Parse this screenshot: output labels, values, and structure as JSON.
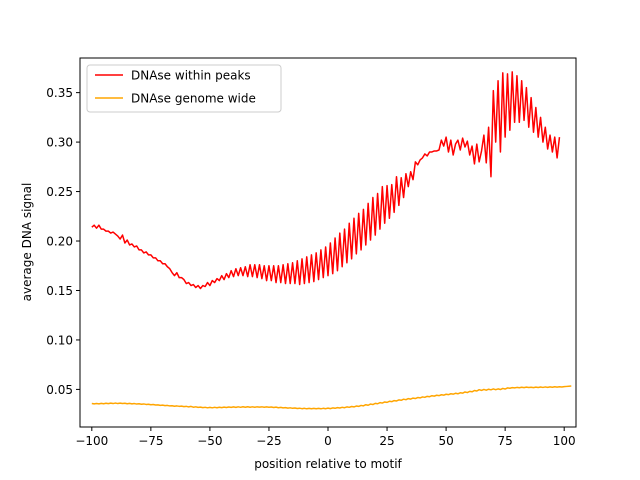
{
  "chart_data": {
    "type": "line",
    "title": "",
    "xlabel": "position relative to motif",
    "ylabel": "average DNA signal",
    "xlim": [
      -105,
      105
    ],
    "ylim": [
      0.012,
      0.385
    ],
    "xticks": [
      -100,
      -75,
      -50,
      -25,
      0,
      25,
      50,
      75,
      100
    ],
    "xtick_labels": [
      "−100",
      "−75",
      "−50",
      "−25",
      "0",
      "25",
      "50",
      "75",
      "100"
    ],
    "yticks": [
      0.05,
      0.1,
      0.15,
      0.2,
      0.25,
      0.3,
      0.35
    ],
    "ytick_labels": [
      "0.05",
      "0.10",
      "0.15",
      "0.20",
      "0.25",
      "0.30",
      "0.35"
    ],
    "grid": false,
    "legend_position": "upper-left",
    "x": {
      "start": -100,
      "end": 100,
      "step": 1
    },
    "series": [
      {
        "name": "DNAse within peaks",
        "color": "#ff0000",
        "values": [
          0.214,
          0.216,
          0.213,
          0.216,
          0.212,
          0.212,
          0.21,
          0.21,
          0.208,
          0.209,
          0.207,
          0.205,
          0.202,
          0.206,
          0.198,
          0.201,
          0.196,
          0.197,
          0.194,
          0.195,
          0.191,
          0.191,
          0.188,
          0.189,
          0.186,
          0.186,
          0.183,
          0.183,
          0.18,
          0.18,
          0.177,
          0.177,
          0.174,
          0.172,
          0.168,
          0.165,
          0.168,
          0.163,
          0.163,
          0.161,
          0.157,
          0.158,
          0.155,
          0.156,
          0.153,
          0.155,
          0.152,
          0.155,
          0.154,
          0.158,
          0.155,
          0.16,
          0.158,
          0.162,
          0.16,
          0.165,
          0.161,
          0.167,
          0.163,
          0.17,
          0.164,
          0.172,
          0.165,
          0.173,
          0.165,
          0.174,
          0.164,
          0.176,
          0.164,
          0.176,
          0.163,
          0.176,
          0.162,
          0.175,
          0.16,
          0.175,
          0.16,
          0.175,
          0.158,
          0.175,
          0.158,
          0.176,
          0.157,
          0.177,
          0.157,
          0.178,
          0.157,
          0.18,
          0.156,
          0.182,
          0.157,
          0.184,
          0.158,
          0.186,
          0.159,
          0.188,
          0.161,
          0.191,
          0.163,
          0.194,
          0.165,
          0.198,
          0.167,
          0.203,
          0.17,
          0.208,
          0.174,
          0.212,
          0.178,
          0.218,
          0.182,
          0.223,
          0.187,
          0.228,
          0.191,
          0.232,
          0.196,
          0.238,
          0.201,
          0.244,
          0.206,
          0.248,
          0.212,
          0.255,
          0.218,
          0.256,
          0.223,
          0.257,
          0.229,
          0.265,
          0.236,
          0.264,
          0.244,
          0.268,
          0.255,
          0.27,
          0.262,
          0.28,
          0.277,
          0.282,
          0.284,
          0.288,
          0.286,
          0.29,
          0.29,
          0.291,
          0.291,
          0.292,
          0.302,
          0.296,
          0.305,
          0.29,
          0.302,
          0.287,
          0.298,
          0.302,
          0.292,
          0.304,
          0.295,
          0.301,
          0.287,
          0.296,
          0.278,
          0.298,
          0.28,
          0.291,
          0.307,
          0.279,
          0.315,
          0.265,
          0.352,
          0.3,
          0.362,
          0.29,
          0.37,
          0.305,
          0.369,
          0.312,
          0.371,
          0.32,
          0.367,
          0.32,
          0.362,
          0.322,
          0.355,
          0.315,
          0.345,
          0.31,
          0.335,
          0.305,
          0.325,
          0.3,
          0.315,
          0.293,
          0.307,
          0.29,
          0.305,
          0.284,
          0.305
        ]
      },
      {
        "name": "DNAse genome wide",
        "color": "#ffa500",
        "values": [
          0.0358,
          0.0354,
          0.0357,
          0.0354,
          0.0359,
          0.0355,
          0.036,
          0.0356,
          0.0361,
          0.0357,
          0.0362,
          0.0357,
          0.0361,
          0.0357,
          0.036,
          0.0355,
          0.0359,
          0.0354,
          0.0357,
          0.0352,
          0.0355,
          0.035,
          0.0353,
          0.0348,
          0.035,
          0.0345,
          0.0347,
          0.0342,
          0.0344,
          0.0339,
          0.0341,
          0.0336,
          0.0338,
          0.0333,
          0.0335,
          0.033,
          0.0333,
          0.0329,
          0.0331,
          0.0326,
          0.0329,
          0.0323,
          0.0328,
          0.032,
          0.0324,
          0.0318,
          0.0321,
          0.0316,
          0.0319,
          0.0314,
          0.0318,
          0.0314,
          0.0319,
          0.0315,
          0.032,
          0.0316,
          0.0321,
          0.0317,
          0.0322,
          0.0318,
          0.0323,
          0.0318,
          0.0324,
          0.0319,
          0.0325,
          0.032,
          0.0325,
          0.032,
          0.0324,
          0.032,
          0.0324,
          0.0321,
          0.0324,
          0.032,
          0.0323,
          0.032,
          0.0322,
          0.0317,
          0.0321,
          0.0315,
          0.0318,
          0.0313,
          0.0316,
          0.0311,
          0.0314,
          0.0309,
          0.0312,
          0.0307,
          0.031,
          0.0305,
          0.0309,
          0.0304,
          0.0308,
          0.0304,
          0.0308,
          0.0304,
          0.0308,
          0.0304,
          0.0309,
          0.0305,
          0.0311,
          0.0306,
          0.0313,
          0.0309,
          0.0316,
          0.0312,
          0.0319,
          0.0315,
          0.0323,
          0.0319,
          0.0327,
          0.0323,
          0.0332,
          0.0328,
          0.0338,
          0.0334,
          0.0345,
          0.034,
          0.0352,
          0.0347,
          0.0359,
          0.0355,
          0.0366,
          0.0362,
          0.0373,
          0.0369,
          0.038,
          0.0376,
          0.0387,
          0.0383,
          0.0394,
          0.039,
          0.0401,
          0.0396,
          0.0407,
          0.0402,
          0.0412,
          0.0408,
          0.0418,
          0.0414,
          0.0424,
          0.042,
          0.043,
          0.0426,
          0.0436,
          0.0432,
          0.0441,
          0.0437,
          0.0446,
          0.0442,
          0.0451,
          0.0447,
          0.0456,
          0.0452,
          0.0461,
          0.0456,
          0.0466,
          0.0462,
          0.0474,
          0.0468,
          0.048,
          0.0476,
          0.0489,
          0.0484,
          0.0497,
          0.049,
          0.05,
          0.0492,
          0.0502,
          0.0496,
          0.0505,
          0.0497,
          0.0505,
          0.0499,
          0.051,
          0.0504,
          0.0515,
          0.0512,
          0.0518,
          0.0515,
          0.052,
          0.0517,
          0.0522,
          0.0518,
          0.0523,
          0.0519,
          0.0522,
          0.0518,
          0.0523,
          0.0519,
          0.0524,
          0.052,
          0.0525,
          0.0521,
          0.0526,
          0.0522,
          0.0527,
          0.0523,
          0.0527,
          0.0524,
          0.0528,
          0.053,
          0.0532,
          0.0534
        ]
      }
    ]
  }
}
